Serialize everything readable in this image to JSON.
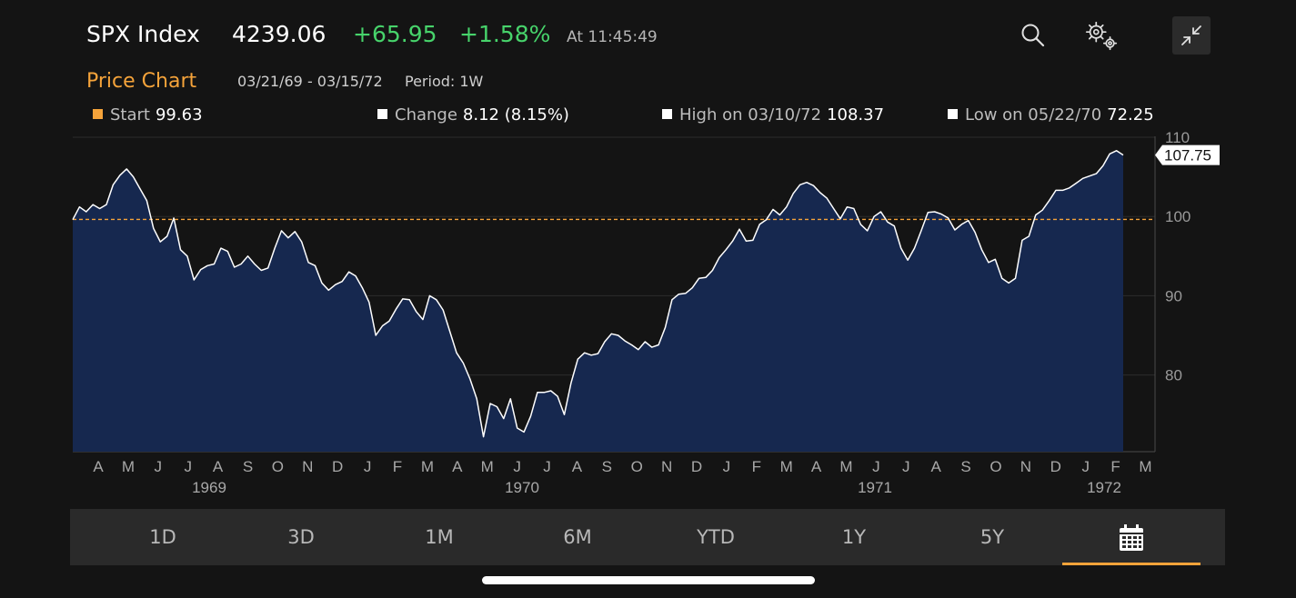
{
  "header": {
    "ticker": "SPX Index",
    "price": "4239.06",
    "change": "+65.95",
    "change_pct": "+1.58%",
    "time": "At 11:45:49",
    "icons": [
      "search-icon",
      "settings-gears-icon",
      "collapse-icon"
    ]
  },
  "subheader": {
    "title": "Price Chart",
    "range": "03/21/69 - 03/15/72",
    "period": "Period: 1W"
  },
  "legend": {
    "start_label": "Start",
    "start_value": "99.63",
    "change_label": "Change",
    "change_value": "8.12 (8.15%)",
    "high_label": "High on 03/10/72",
    "high_value": "108.37",
    "low_label": "Low on 05/22/70",
    "low_value": "72.25"
  },
  "colors": {
    "accent": "#f5a33a",
    "positive": "#47d36b",
    "area_fill": "#16284f",
    "line": "#ffffff",
    "start_marker": "#f5a33a"
  },
  "chart_data": {
    "type": "area",
    "ylim": [
      70,
      110
    ],
    "yticks": [
      "110",
      "100",
      "90",
      "80"
    ],
    "reference_line": 99.63,
    "last_value_label": "107.75",
    "months": [
      "A",
      "M",
      "J",
      "J",
      "A",
      "S",
      "O",
      "N",
      "D",
      "J",
      "F",
      "M",
      "A",
      "M",
      "J",
      "J",
      "A",
      "S",
      "O",
      "N",
      "D",
      "J",
      "F",
      "M",
      "A",
      "M",
      "J",
      "J",
      "A",
      "S",
      "O",
      "N",
      "D",
      "J",
      "F",
      "M"
    ],
    "years": [
      "1969",
      "1970",
      "1971",
      "1972"
    ],
    "values": [
      99.6,
      101.2,
      100.6,
      101.5,
      101,
      101.5,
      104,
      105.2,
      106,
      105,
      103.5,
      102,
      98.5,
      96.8,
      97.5,
      99.8,
      95.8,
      95,
      92,
      93.3,
      93.8,
      94,
      96,
      95.6,
      93.6,
      94,
      95,
      94,
      93.2,
      93.5,
      96,
      98.2,
      97.3,
      98.1,
      96.8,
      94.2,
      93.8,
      91.6,
      90.7,
      91.4,
      91.8,
      93,
      92.5,
      91,
      89.2,
      85,
      86.2,
      86.8,
      88.3,
      89.6,
      89.5,
      88,
      87,
      90,
      89.5,
      88.2,
      85.5,
      82.8,
      81.5,
      79.5,
      77,
      72.2,
      76.4,
      76,
      74.5,
      77,
      73.3,
      72.8,
      74.8,
      77.8,
      77.8,
      78,
      77.3,
      75,
      79,
      82,
      82.8,
      82.5,
      82.7,
      84.2,
      85.2,
      85,
      84.3,
      83.8,
      83.2,
      84.2,
      83.5,
      83.8,
      86,
      89.5,
      90.2,
      90.3,
      91,
      92.2,
      92.3,
      93.2,
      94.8,
      95.8,
      96.9,
      98.4,
      96.9,
      97,
      99,
      99.6,
      100.9,
      100.2,
      101.2,
      102.9,
      104,
      104.3,
      103.9,
      103,
      102.3,
      101,
      99.7,
      101.2,
      101,
      99,
      98.2,
      100,
      100.6,
      99.3,
      98.8,
      96,
      94.5,
      96,
      98.2,
      100.5,
      100.6,
      100.3,
      99.8,
      98.3,
      99,
      99.5,
      98,
      95.8,
      94.2,
      94.6,
      92.2,
      91.6,
      92.2,
      97,
      97.5,
      100.2,
      100.8,
      102,
      103.3,
      103.3,
      103.6,
      104.2,
      104.8,
      105.1,
      105.4,
      106.4,
      107.9,
      108.3,
      107.75
    ]
  },
  "tabs": [
    {
      "label": "1D"
    },
    {
      "label": "3D"
    },
    {
      "label": "1M"
    },
    {
      "label": "6M"
    },
    {
      "label": "YTD"
    },
    {
      "label": "1Y"
    },
    {
      "label": "5Y"
    }
  ]
}
